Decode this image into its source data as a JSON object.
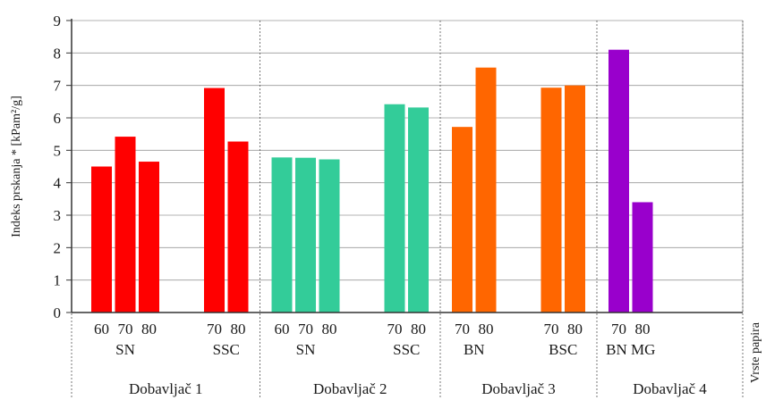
{
  "chart_data": {
    "type": "bar",
    "ylabel": "Indeks prskanja * [kPam²/g]",
    "ylim": [
      0,
      9
    ],
    "yticks": [
      0,
      1,
      2,
      3,
      4,
      5,
      6,
      7,
      8,
      9
    ],
    "xaxis_side_label": "Vrste papira",
    "grid": {
      "horizontal": true,
      "vertical_separators": "dotted"
    },
    "suppliers": [
      {
        "name": "Dobavljač 1",
        "groups": [
          {
            "name": "SN",
            "color": "#ff0000",
            "bars": [
              {
                "x": "60",
                "value": 4.5
              },
              {
                "x": "70",
                "value": 5.42
              },
              {
                "x": "80",
                "value": 4.65
              }
            ]
          },
          {
            "name": "SSC",
            "color": "#ff0000",
            "bars": [
              {
                "x": "70",
                "value": 6.92
              },
              {
                "x": "80",
                "value": 5.27
              }
            ]
          }
        ]
      },
      {
        "name": "Dobavljač 2",
        "groups": [
          {
            "name": "SN",
            "color": "#33cc99",
            "bars": [
              {
                "x": "60",
                "value": 4.78
              },
              {
                "x": "70",
                "value": 4.77
              },
              {
                "x": "80",
                "value": 4.72
              }
            ]
          },
          {
            "name": "SSC",
            "color": "#33cc99",
            "bars": [
              {
                "x": "70",
                "value": 6.42
              },
              {
                "x": "80",
                "value": 6.32
              }
            ]
          }
        ]
      },
      {
        "name": "Dobavljač 3",
        "groups": [
          {
            "name": "BN",
            "color": "#ff6600",
            "bars": [
              {
                "x": "70",
                "value": 5.72
              },
              {
                "x": "80",
                "value": 7.55
              }
            ]
          },
          {
            "name": "BSC",
            "color": "#ff6600",
            "bars": [
              {
                "x": "70",
                "value": 6.93
              },
              {
                "x": "80",
                "value": 7.0
              }
            ]
          }
        ]
      },
      {
        "name": "Dobavljač 4",
        "groups": [
          {
            "name": "BN MG",
            "color": "#9900cc",
            "bars": [
              {
                "x": "70",
                "value": 8.1
              },
              {
                "x": "80",
                "value": 3.4
              }
            ]
          }
        ]
      }
    ]
  }
}
